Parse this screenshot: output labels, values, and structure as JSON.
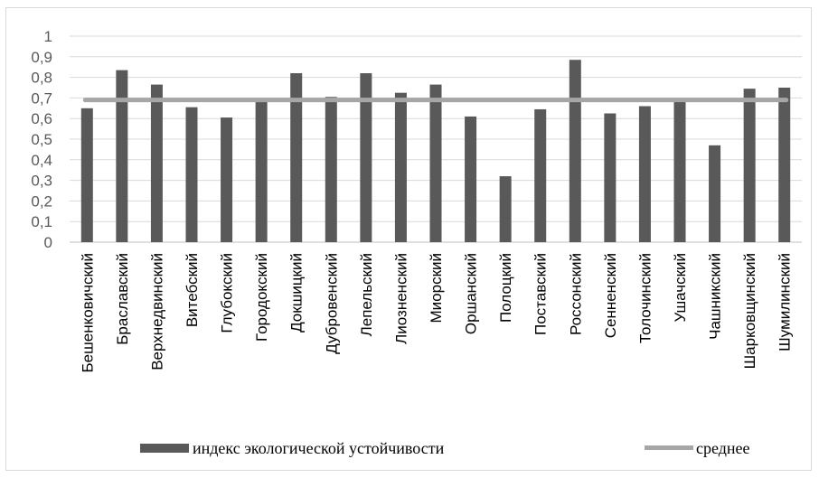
{
  "chart_data": {
    "type": "bar",
    "categories": [
      "Бешенковичский",
      "Браславский",
      "Верхнедвинский",
      "Витебский",
      "Глубокский",
      "Городокский",
      "Докшицкий",
      "Дубровенский",
      "Лепельский",
      "Лиозненский",
      "Миорский",
      "Оршанский",
      "Полоцкий",
      "Поставский",
      "Россонский",
      "Сенненский",
      "Толочинский",
      "Ушачский",
      "Чашникский",
      "Шарковщинский",
      "Шумилинский"
    ],
    "series": [
      {
        "name": "индекс экологической устойчивости",
        "type": "bar",
        "color": "#595959",
        "values": [
          0.65,
          0.835,
          0.765,
          0.655,
          0.605,
          0.68,
          0.82,
          0.705,
          0.82,
          0.725,
          0.765,
          0.61,
          0.32,
          0.645,
          0.885,
          0.625,
          0.66,
          0.68,
          0.47,
          0.745,
          0.75
        ]
      },
      {
        "name": "среднее",
        "type": "line",
        "color": "#a6a6a6",
        "value": 0.69
      }
    ],
    "y_ticks": [
      "0",
      "0,1",
      "0,2",
      "0,3",
      "0,4",
      "0,5",
      "0,6",
      "0,7",
      "0,8",
      "0,9",
      "1"
    ],
    "ylim": [
      0,
      1
    ],
    "grid": true,
    "legend_position": "bottom"
  }
}
